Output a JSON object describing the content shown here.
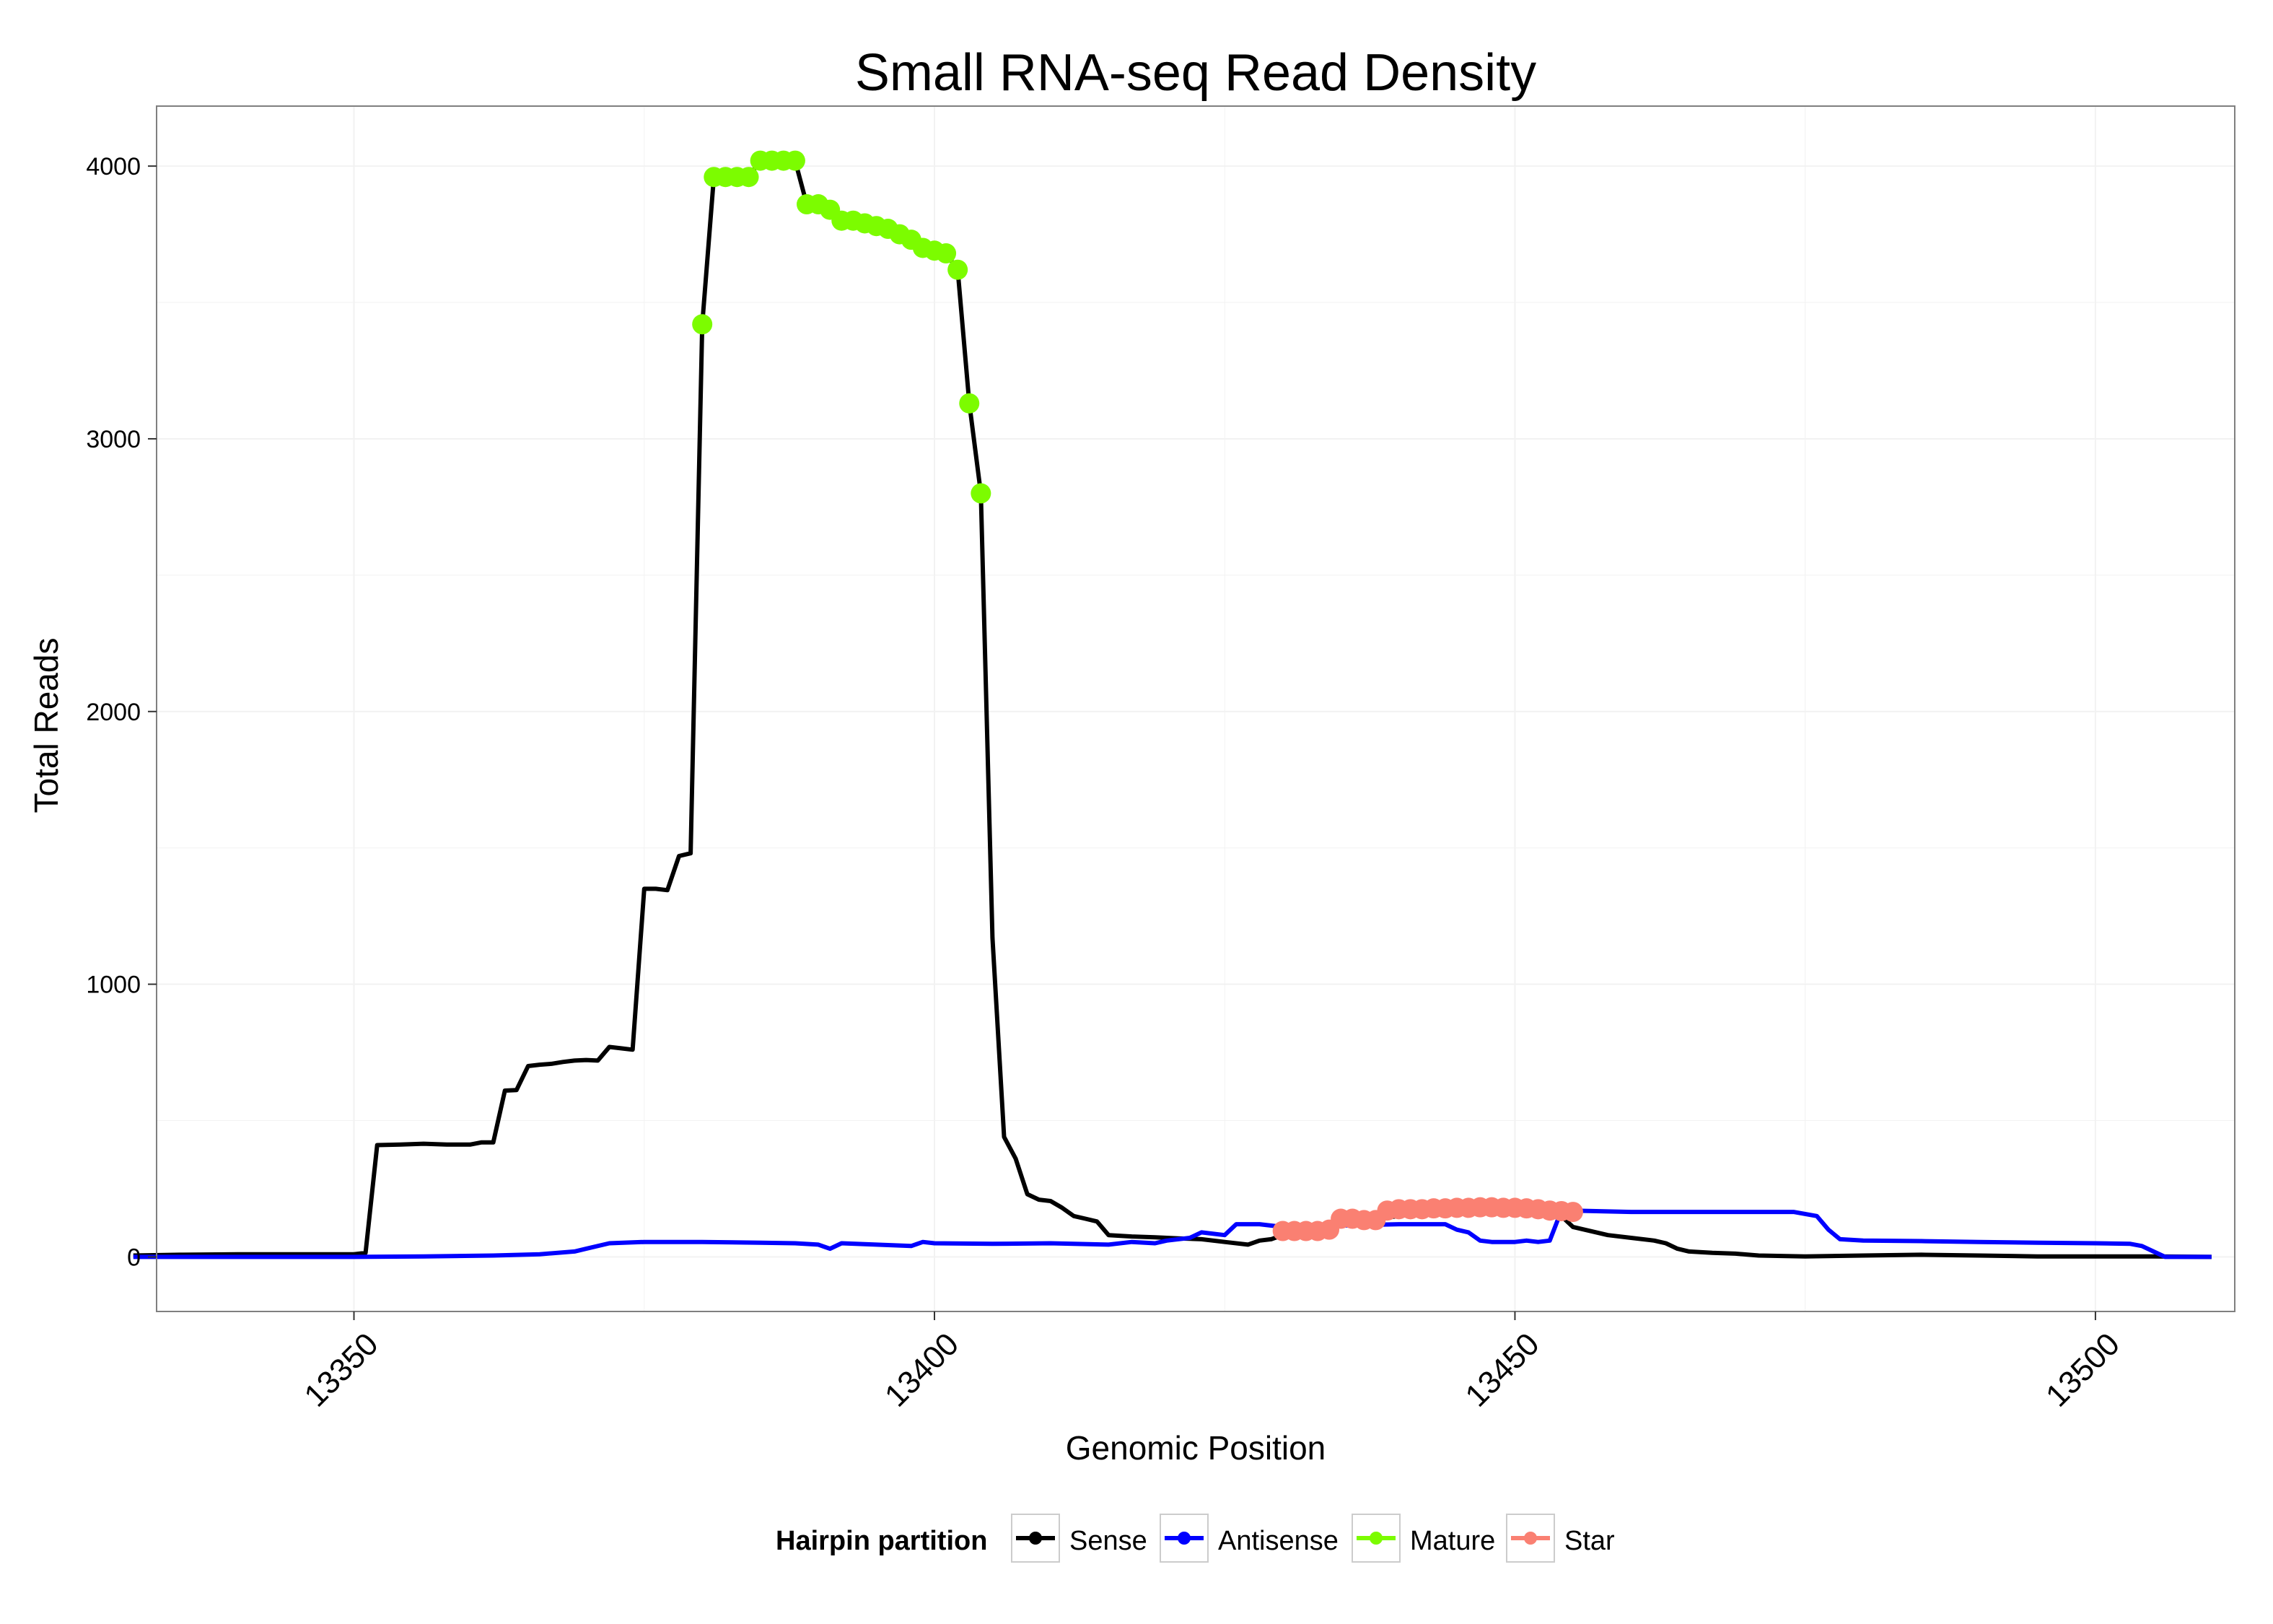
{
  "chart_data": {
    "type": "line",
    "title": "Small RNA-seq Read Density",
    "xlabel": "Genomic Position",
    "ylabel": "Total Reads",
    "xlim": [
      13333,
      13512
    ],
    "ylim": [
      -200,
      4220
    ],
    "xticks": [
      13350,
      13400,
      13450,
      13500
    ],
    "yticks": [
      0,
      1000,
      2000,
      3000,
      4000
    ],
    "grid": true,
    "legend": {
      "title": "Hairpin partition",
      "position": "bottom",
      "entries": [
        "Sense",
        "Antisense",
        "Mature",
        "Star"
      ]
    },
    "colors": {
      "Sense": "#000000",
      "Antisense": "#0000ff",
      "Mature": "#7cfc00",
      "Star": "#fa8072",
      "grid": "#f2f2f2",
      "panel_border": "#7f7f7f"
    },
    "series": [
      {
        "name": "Sense",
        "style": "line",
        "points": [
          [
            13331,
            5
          ],
          [
            13335,
            8
          ],
          [
            13340,
            10
          ],
          [
            13345,
            10
          ],
          [
            13350,
            10
          ],
          [
            13351,
            15
          ],
          [
            13352,
            410
          ],
          [
            13354,
            412
          ],
          [
            13356,
            415
          ],
          [
            13358,
            412
          ],
          [
            13360,
            412
          ],
          [
            13361,
            420
          ],
          [
            13362,
            420
          ],
          [
            13363,
            610
          ],
          [
            13364,
            612
          ],
          [
            13365,
            700
          ],
          [
            13366,
            705
          ],
          [
            13367,
            708
          ],
          [
            13368,
            715
          ],
          [
            13369,
            720
          ],
          [
            13370,
            722
          ],
          [
            13371,
            720
          ],
          [
            13372,
            770
          ],
          [
            13373,
            765
          ],
          [
            13374,
            760
          ],
          [
            13375,
            1350
          ],
          [
            13376,
            1350
          ],
          [
            13377,
            1345
          ],
          [
            13378,
            1470
          ],
          [
            13379,
            1480
          ],
          [
            13380,
            3420
          ],
          [
            13381,
            3960
          ],
          [
            13382,
            3960
          ],
          [
            13383,
            3960
          ],
          [
            13384,
            3960
          ],
          [
            13385,
            4020
          ],
          [
            13386,
            4020
          ],
          [
            13387,
            4020
          ],
          [
            13388,
            4020
          ],
          [
            13389,
            3860
          ],
          [
            13390,
            3860
          ],
          [
            13391,
            3840
          ],
          [
            13392,
            3800
          ],
          [
            13393,
            3800
          ],
          [
            13394,
            3790
          ],
          [
            13395,
            3780
          ],
          [
            13396,
            3770
          ],
          [
            13397,
            3750
          ],
          [
            13398,
            3730
          ],
          [
            13399,
            3700
          ],
          [
            13400,
            3690
          ],
          [
            13401,
            3680
          ],
          [
            13402,
            3620
          ],
          [
            13403,
            3130
          ],
          [
            13404,
            2800
          ],
          [
            13405,
            1170
          ],
          [
            13406,
            440
          ],
          [
            13407,
            360
          ],
          [
            13408,
            230
          ],
          [
            13409,
            210
          ],
          [
            13410,
            205
          ],
          [
            13411,
            180
          ],
          [
            13412,
            150
          ],
          [
            13413,
            140
          ],
          [
            13414,
            130
          ],
          [
            13415,
            80
          ],
          [
            13417,
            75
          ],
          [
            13419,
            72
          ],
          [
            13421,
            68
          ],
          [
            13423,
            65
          ],
          [
            13425,
            55
          ],
          [
            13427,
            45
          ],
          [
            13428,
            60
          ],
          [
            13429,
            65
          ],
          [
            13430,
            80
          ],
          [
            13432,
            100
          ],
          [
            13434,
            120
          ],
          [
            13436,
            130
          ],
          [
            13438,
            140
          ],
          [
            13440,
            150
          ],
          [
            13442,
            160
          ],
          [
            13444,
            165
          ],
          [
            13446,
            168
          ],
          [
            13448,
            170
          ],
          [
            13450,
            172
          ],
          [
            13452,
            168
          ],
          [
            13453,
            165
          ],
          [
            13454,
            150
          ],
          [
            13455,
            110
          ],
          [
            13456,
            100
          ],
          [
            13458,
            80
          ],
          [
            13460,
            70
          ],
          [
            13462,
            60
          ],
          [
            13463,
            50
          ],
          [
            13464,
            30
          ],
          [
            13465,
            20
          ],
          [
            13467,
            15
          ],
          [
            13469,
            12
          ],
          [
            13471,
            5
          ],
          [
            13475,
            2
          ],
          [
            13480,
            5
          ],
          [
            13485,
            8
          ],
          [
            13490,
            5
          ],
          [
            13495,
            2
          ],
          [
            13500,
            2
          ],
          [
            13505,
            2
          ],
          [
            13510,
            0
          ]
        ]
      },
      {
        "name": "Antisense",
        "style": "line",
        "points": [
          [
            13331,
            0
          ],
          [
            13340,
            0
          ],
          [
            13350,
            0
          ],
          [
            13356,
            2
          ],
          [
            13362,
            5
          ],
          [
            13366,
            10
          ],
          [
            13369,
            20
          ],
          [
            13370,
            30
          ],
          [
            13372,
            50
          ],
          [
            13375,
            55
          ],
          [
            13380,
            55
          ],
          [
            13385,
            52
          ],
          [
            13388,
            50
          ],
          [
            13390,
            45
          ],
          [
            13391,
            30
          ],
          [
            13392,
            50
          ],
          [
            13395,
            45
          ],
          [
            13398,
            40
          ],
          [
            13399,
            55
          ],
          [
            13400,
            50
          ],
          [
            13405,
            48
          ],
          [
            13410,
            50
          ],
          [
            13415,
            45
          ],
          [
            13417,
            55
          ],
          [
            13419,
            50
          ],
          [
            13420,
            60
          ],
          [
            13422,
            70
          ],
          [
            13423,
            90
          ],
          [
            13425,
            80
          ],
          [
            13426,
            120
          ],
          [
            13428,
            120
          ],
          [
            13430,
            110
          ],
          [
            13433,
            110
          ],
          [
            13435,
            115
          ],
          [
            13440,
            120
          ],
          [
            13444,
            120
          ],
          [
            13445,
            100
          ],
          [
            13446,
            90
          ],
          [
            13447,
            60
          ],
          [
            13448,
            55
          ],
          [
            13450,
            55
          ],
          [
            13451,
            60
          ],
          [
            13452,
            55
          ],
          [
            13453,
            60
          ],
          [
            13454,
            170
          ],
          [
            13455,
            170
          ],
          [
            13460,
            165
          ],
          [
            13465,
            165
          ],
          [
            13470,
            165
          ],
          [
            13474,
            165
          ],
          [
            13476,
            150
          ],
          [
            13477,
            100
          ],
          [
            13478,
            65
          ],
          [
            13480,
            60
          ],
          [
            13485,
            58
          ],
          [
            13490,
            55
          ],
          [
            13495,
            52
          ],
          [
            13500,
            50
          ],
          [
            13503,
            48
          ],
          [
            13504,
            40
          ],
          [
            13505,
            20
          ],
          [
            13506,
            0
          ],
          [
            13510,
            0
          ]
        ]
      },
      {
        "name": "Mature",
        "style": "points",
        "points": [
          [
            13380,
            3420
          ],
          [
            13381,
            3960
          ],
          [
            13382,
            3960
          ],
          [
            13383,
            3960
          ],
          [
            13384,
            3960
          ],
          [
            13385,
            4020
          ],
          [
            13386,
            4020
          ],
          [
            13387,
            4020
          ],
          [
            13388,
            4020
          ],
          [
            13389,
            3860
          ],
          [
            13390,
            3860
          ],
          [
            13391,
            3840
          ],
          [
            13392,
            3800
          ],
          [
            13393,
            3800
          ],
          [
            13394,
            3790
          ],
          [
            13395,
            3780
          ],
          [
            13396,
            3770
          ],
          [
            13397,
            3750
          ],
          [
            13398,
            3730
          ],
          [
            13399,
            3700
          ],
          [
            13400,
            3690
          ],
          [
            13401,
            3680
          ],
          [
            13402,
            3620
          ],
          [
            13403,
            3130
          ],
          [
            13404,
            2800
          ]
        ]
      },
      {
        "name": "Star",
        "style": "points",
        "points": [
          [
            13430,
            95
          ],
          [
            13431,
            95
          ],
          [
            13432,
            95
          ],
          [
            13433,
            95
          ],
          [
            13434,
            100
          ],
          [
            13435,
            140
          ],
          [
            13436,
            140
          ],
          [
            13437,
            135
          ],
          [
            13438,
            135
          ],
          [
            13439,
            170
          ],
          [
            13440,
            175
          ],
          [
            13441,
            175
          ],
          [
            13442,
            175
          ],
          [
            13443,
            178
          ],
          [
            13444,
            178
          ],
          [
            13445,
            180
          ],
          [
            13446,
            180
          ],
          [
            13447,
            182
          ],
          [
            13448,
            182
          ],
          [
            13449,
            180
          ],
          [
            13450,
            180
          ],
          [
            13451,
            178
          ],
          [
            13452,
            175
          ],
          [
            13453,
            170
          ],
          [
            13454,
            168
          ],
          [
            13455,
            165
          ]
        ]
      }
    ]
  }
}
